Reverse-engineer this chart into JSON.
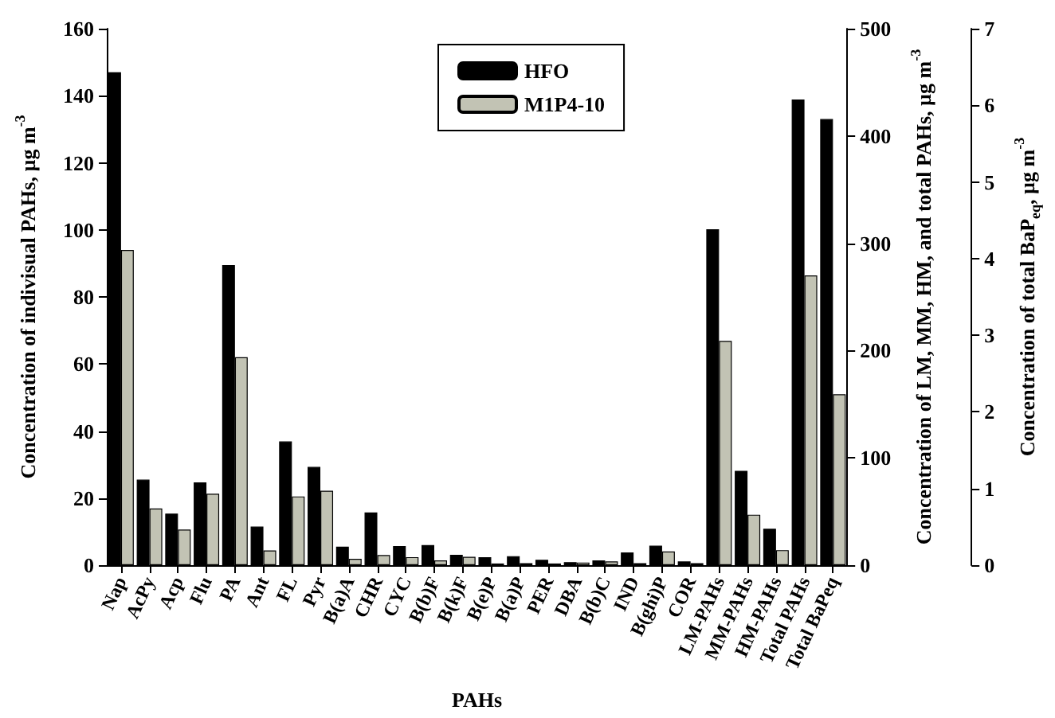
{
  "chart_data": {
    "type": "bar",
    "xlabel": "PAHs",
    "ylabel": "Concentration of indivisual PAHs, µg m$^{-3}$",
    "y2label": "Concentration of LM, MM, HM, and total PAHs, µg m$^{-3}$",
    "y3label": "Concentration of total BaP$_{eq}$, µg m$^{-3}$",
    "categories": [
      "Nap",
      "AcPy",
      "Acp",
      "Flu",
      "PA",
      "Ant",
      "FL",
      "Pyr",
      "B(a)A",
      "CHR",
      "CYC",
      "B(b)F",
      "B(k)F",
      "B(e)P",
      "B(a)P",
      "PER",
      "DBA",
      "B(b)C",
      "IND",
      "B(ghi)P",
      "COR",
      "LM-PAHs",
      "MM-PAHs",
      "HM-PAHs",
      "Total PAHs",
      "Total BaPeq"
    ],
    "series": [
      {
        "name": "HFO",
        "color": "#000000",
        "values": [
          147,
          25.5,
          15.4,
          24.7,
          89.5,
          11.5,
          36.9,
          29.3,
          5.5,
          15.7,
          5.7,
          6,
          3.1,
          2.4,
          2.7,
          1.6,
          0.9,
          1.4,
          3.8,
          5.8,
          1.1,
          null,
          null,
          null,
          null,
          null
        ]
      },
      {
        "name": "M1P4-10",
        "color": "#c2c3b4",
        "values": [
          94,
          16.9,
          10.6,
          21.3,
          62,
          4.4,
          20.5,
          22.2,
          1.9,
          3,
          2.4,
          1.4,
          2.5,
          0.5,
          0.6,
          0.5,
          0.8,
          1.1,
          0.6,
          4.1,
          0.6,
          null,
          null,
          null,
          null,
          null
        ]
      },
      {
        "color": "#000000",
        "axis": "y2",
        "values": [
          null,
          null,
          null,
          null,
          null,
          null,
          null,
          null,
          null,
          null,
          null,
          null,
          null,
          null,
          null,
          null,
          null,
          null,
          null,
          null,
          null,
          313,
          88,
          34,
          434,
          null
        ]
      },
      {
        "color": "#c2c3b4",
        "axis": "y2",
        "values": [
          null,
          null,
          null,
          null,
          null,
          null,
          null,
          null,
          null,
          null,
          null,
          null,
          null,
          null,
          null,
          null,
          null,
          null,
          null,
          null,
          null,
          209,
          47,
          14,
          270,
          null
        ]
      },
      {
        "color": "#000000",
        "axis": "y3",
        "values": [
          null,
          null,
          null,
          null,
          null,
          null,
          null,
          null,
          null,
          null,
          null,
          null,
          null,
          null,
          null,
          null,
          null,
          null,
          null,
          null,
          null,
          null,
          null,
          null,
          null,
          5.82
        ]
      },
      {
        "color": "#c2c3b4",
        "axis": "y3",
        "values": [
          null,
          null,
          null,
          null,
          null,
          null,
          null,
          null,
          null,
          null,
          null,
          null,
          null,
          null,
          null,
          null,
          null,
          null,
          null,
          null,
          null,
          null,
          null,
          null,
          null,
          2.23
        ]
      }
    ],
    "ylim": [
      0,
      160
    ],
    "yticks": [
      0,
      20,
      40,
      60,
      80,
      100,
      120,
      140,
      160
    ],
    "y2lim": [
      0,
      500
    ],
    "y2ticks": [
      0,
      100,
      200,
      300,
      400,
      500
    ],
    "y3lim": [
      0,
      7
    ],
    "y3ticks": [
      0,
      1,
      2,
      3,
      4,
      5,
      6,
      7
    ],
    "legend": "top",
    "grid": false
  }
}
